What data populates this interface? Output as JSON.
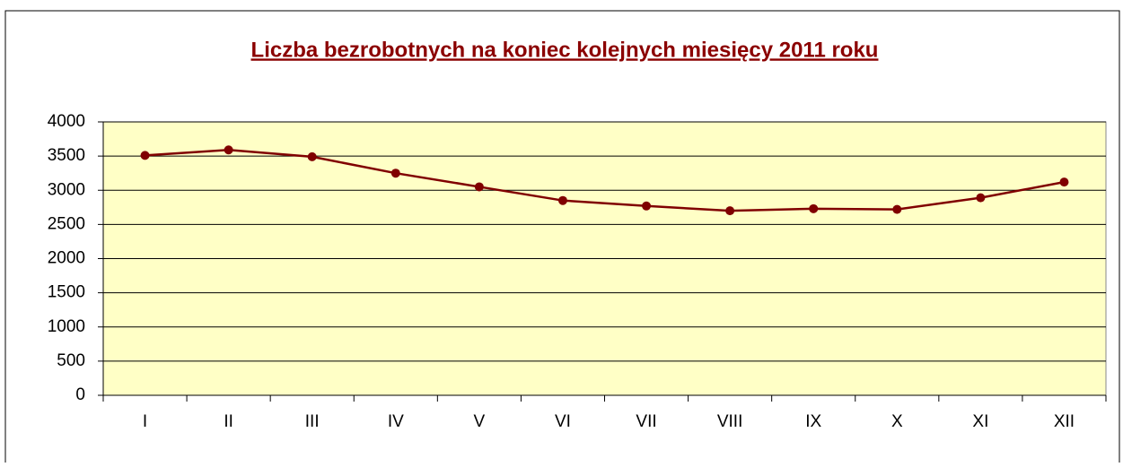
{
  "chart_data": {
    "type": "line",
    "title": "Liczba bezrobotnych na koniec kolejnych miesięcy 2011 roku",
    "categories": [
      "I",
      "II",
      "III",
      "IV",
      "V",
      "VI",
      "VII",
      "VIII",
      "IX",
      "X",
      "XI",
      "XII"
    ],
    "series": [
      {
        "name": "Liczba bezrobotnych",
        "color": "#800000",
        "values": [
          3510,
          3590,
          3490,
          3250,
          3050,
          2850,
          2770,
          2700,
          2730,
          2720,
          2890,
          3120
        ]
      }
    ],
    "ylim": [
      0,
      4000
    ],
    "yticks": [
      0,
      500,
      1000,
      1500,
      2000,
      2500,
      3000,
      3500,
      4000
    ],
    "grid": true,
    "plot_background": "#ffffc6"
  }
}
